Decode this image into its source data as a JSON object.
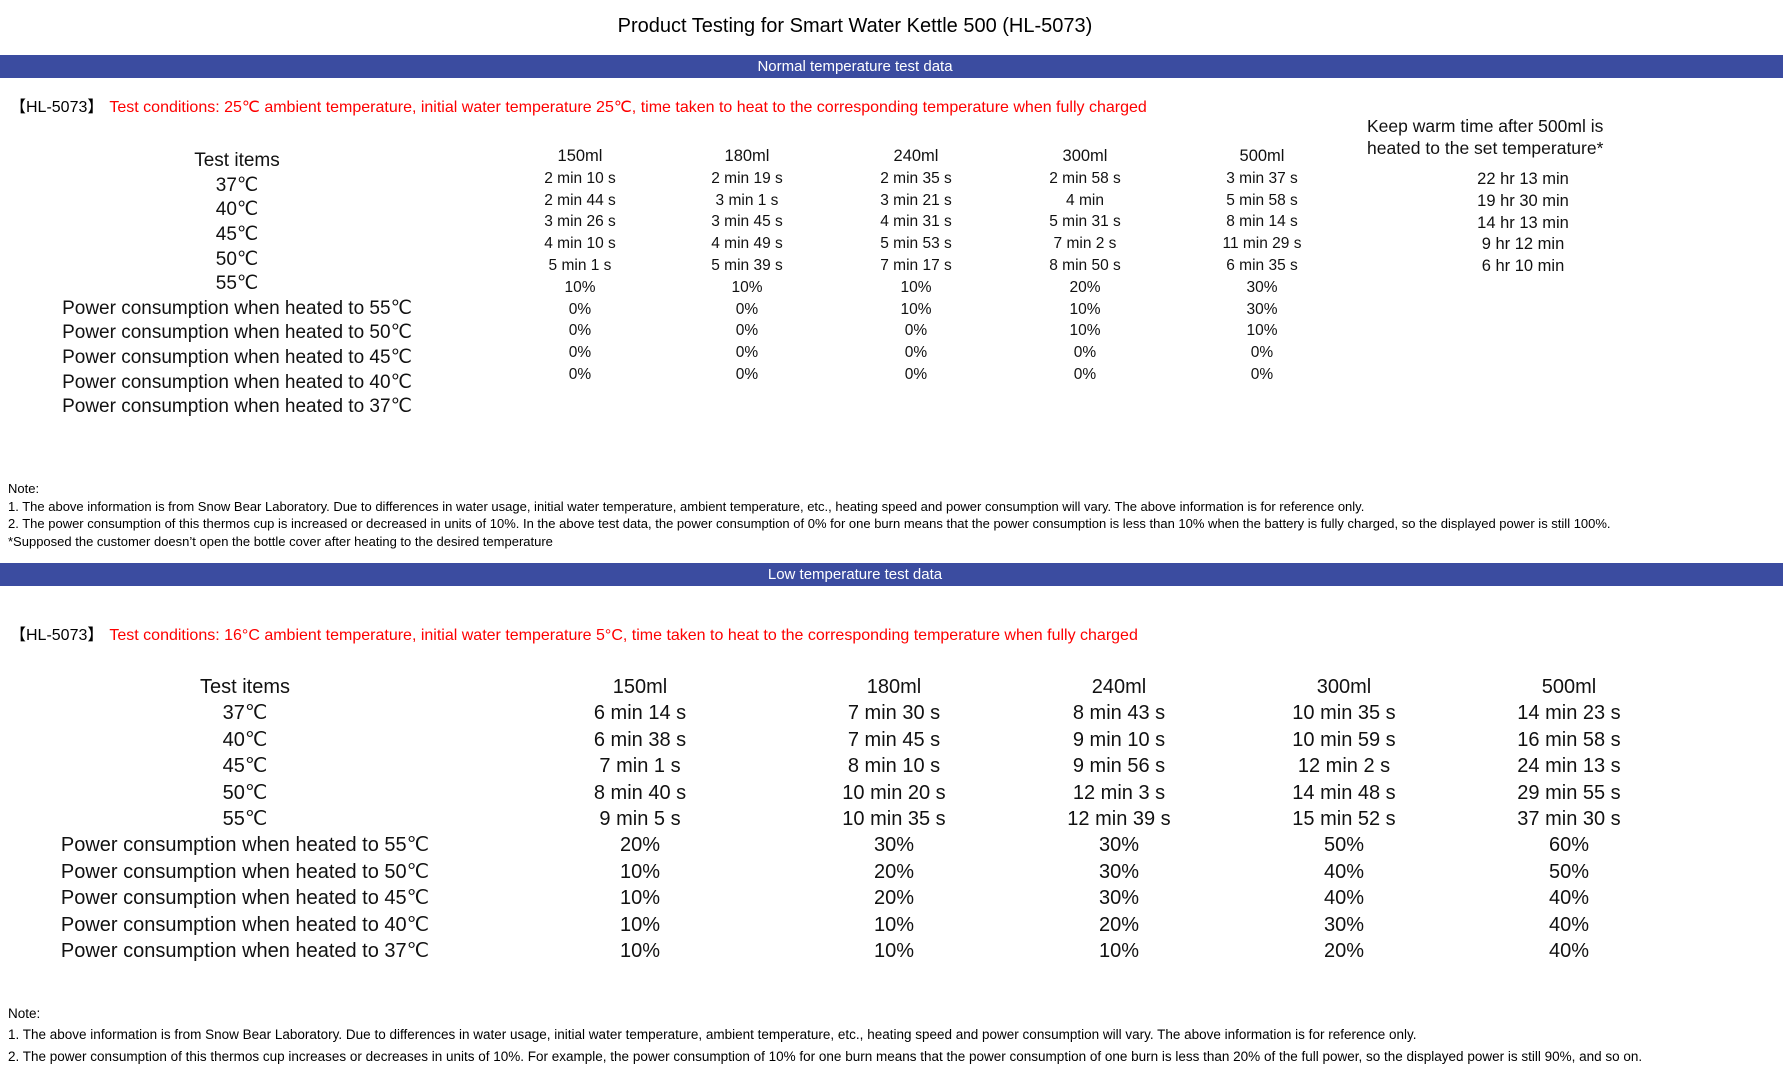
{
  "page_title": "Product Testing for Smart Water Kettle 500 (HL-5073)",
  "colors": {
    "banner_blue": "#3b4ca0",
    "banner_text": "#ffffff",
    "condition_red": "#fe0000"
  },
  "normal_section": {
    "banner_label": "Normal temperature test data",
    "model_tag": "【HL-5073】",
    "conditions_text": "Test conditions: 25℃ ambient temperature, initial water temperature 25℃, time taken to heat to the corresponding temperature when fully charged",
    "row_header_label": "Test items",
    "row_labels": [
      "37℃",
      "40℃",
      "45℃",
      "50℃",
      "55℃",
      "Power consumption when heated to 55℃",
      "Power consumption when heated to 50℃",
      "Power consumption when heated to 45℃",
      "Power consumption when heated to 40℃",
      "Power consumption when heated to 37℃"
    ],
    "volume_columns": [
      {
        "header": "150ml",
        "cells": [
          "2 min 10 s",
          "2 min 44 s",
          "3 min 26 s",
          "4 min 10 s",
          "5 min 1 s",
          "10%",
          "0%",
          "0%",
          "0%",
          "0%"
        ]
      },
      {
        "header": "180ml",
        "cells": [
          "2 min 19 s",
          "3 min 1 s",
          "3 min 45 s",
          "4 min 49 s",
          "5 min 39 s",
          "10%",
          "0%",
          "0%",
          "0%",
          "0%"
        ]
      },
      {
        "header": "240ml",
        "cells": [
          "2 min 35 s",
          "3 min 21 s",
          "4 min 31 s",
          "5 min 53 s",
          "7 min 17 s",
          "10%",
          "10%",
          "0%",
          "0%",
          "0%"
        ]
      },
      {
        "header": "300ml",
        "cells": [
          "2 min 58 s",
          "4 min",
          "5 min 31 s",
          "7 min 2 s",
          "8 min 50 s",
          "20%",
          "10%",
          "10%",
          "0%",
          "0%"
        ]
      },
      {
        "header": "500ml",
        "cells": [
          "3 min 37 s",
          "5 min 58 s",
          "8 min 14 s",
          "11 min 29 s",
          "6 min 35 s",
          "30%",
          "30%",
          "10%",
          "0%",
          "0%"
        ]
      }
    ],
    "keep_warm_header_lines": [
      "Keep warm time after 500ml is",
      "heated to the set temperature*"
    ],
    "keep_warm_values": [
      "22 hr 13 min",
      "19 hr 30 min",
      "14 hr 13 min",
      "9 hr 12 min",
      "6 hr 10 min"
    ],
    "notes": [
      "Note:",
      "1. The above information is from Snow Bear Laboratory. Due to differences in water usage, initial water temperature, ambient temperature, etc., heating speed and power consumption will vary. The above information is for reference only.",
      "2. The power consumption of this thermos cup is increased or decreased in units of 10%. In the above test data, the power consumption of 0% for one burn means that the power consumption is less than 10% when the battery is fully charged, so the displayed power is still 100%.",
      "*Supposed the customer doesn’t open the bottle cover after heating to the desired temperature"
    ]
  },
  "low_section": {
    "banner_label": "Low temperature test data",
    "model_tag": "【HL-5073】",
    "conditions_text": "Test conditions: 16°C ambient temperature, initial water temperature 5°C, time taken to heat to the corresponding temperature when fully charged",
    "row_header_label": "Test items",
    "row_labels": [
      "37℃",
      "40℃",
      "45℃",
      "50℃",
      "55℃",
      "Power consumption when heated to 55℃",
      "Power consumption when heated to 50℃",
      "Power consumption when heated to 45℃",
      "Power consumption when heated to 40℃",
      "Power consumption when heated to 37℃"
    ],
    "volume_columns": [
      {
        "header": "150ml",
        "cells": [
          "6 min 14 s",
          "6 min 38 s",
          "7 min 1 s",
          "8 min 40 s",
          "9 min 5 s",
          "20%",
          "10%",
          "10%",
          "10%",
          "10%"
        ]
      },
      {
        "header": "180ml",
        "cells": [
          "7 min 30 s",
          "7 min 45 s",
          "8 min 10 s",
          "10 min 20 s",
          "10 min 35 s",
          "30%",
          "20%",
          "20%",
          "10%",
          "10%"
        ]
      },
      {
        "header": "240ml",
        "cells": [
          "8 min 43 s",
          "9 min 10 s",
          "9 min 56 s",
          "12 min 3 s",
          "12 min 39 s",
          "30%",
          "30%",
          "30%",
          "20%",
          "10%"
        ]
      },
      {
        "header": "300ml",
        "cells": [
          "10 min 35 s",
          "10 min 59 s",
          "12 min 2 s",
          "14 min 48 s",
          "15 min 52 s",
          "50%",
          "40%",
          "40%",
          "30%",
          "20%"
        ]
      },
      {
        "header": "500ml",
        "cells": [
          "14 min 23 s",
          "16 min 58 s",
          "24 min 13 s",
          "29 min 55 s",
          "37 min 30 s",
          "60%",
          "50%",
          "40%",
          "40%",
          "40%"
        ]
      }
    ],
    "notes": [
      "Note:",
      "1. The above information is from Snow Bear Laboratory. Due to differences in water usage, initial water temperature, ambient temperature, etc., heating speed and power consumption will vary. The above information is for reference only.",
      "2. The power consumption of this thermos cup increases or decreases in units of 10%. For example, the power consumption of 10% for one burn means that the power consumption of one burn is less than 20% of the full power, so the displayed power is still 90%, and so on."
    ]
  }
}
